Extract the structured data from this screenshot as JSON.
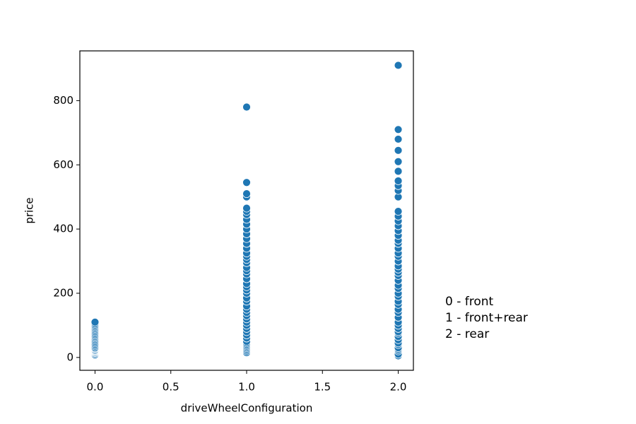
{
  "chart_data": {
    "type": "scatter",
    "xlabel": "driveWheelConfiguration",
    "ylabel": "price",
    "annotation_lines": [
      "0 - front",
      "1 - front+rear",
      "2 - rear"
    ],
    "xlim": [
      -0.1,
      2.1
    ],
    "xticks": [
      {
        "value": 0,
        "label": "0.0"
      },
      0.5,
      {
        "value": 1,
        "label": "1.0"
      },
      1.5,
      {
        "value": 2,
        "label": "2.0"
      }
    ],
    "ylim": [
      -40,
      955
    ],
    "yticks": [
      0,
      200,
      400,
      600,
      800
    ],
    "x": [
      0,
      0,
      0,
      0,
      0,
      0,
      0,
      0,
      0,
      0,
      0,
      0,
      0,
      0,
      0,
      0,
      0,
      0,
      0,
      0,
      0,
      0,
      0,
      0,
      0,
      1,
      1,
      1,
      1,
      1,
      1,
      1,
      1,
      1,
      1,
      1,
      1,
      1,
      1,
      1,
      1,
      1,
      1,
      1,
      1,
      1,
      1,
      1,
      1,
      1,
      1,
      1,
      1,
      1,
      1,
      1,
      1,
      1,
      1,
      1,
      1,
      1,
      1,
      1,
      1,
      1,
      1,
      1,
      1,
      1,
      1,
      1,
      2,
      2,
      2,
      2,
      2,
      2,
      2,
      2,
      2,
      2,
      2,
      2,
      2,
      2,
      2,
      2,
      2,
      2,
      2,
      2,
      2,
      2,
      2,
      2,
      2,
      2,
      2,
      2,
      2,
      2,
      2,
      2,
      2,
      2,
      2,
      2,
      2,
      2,
      2,
      2,
      2,
      2,
      2,
      2,
      2,
      2,
      2,
      2,
      2,
      2
    ],
    "series": [
      {
        "color": "#1f77b4",
        "values": [
          8,
          12,
          15,
          18,
          20,
          22,
          25,
          28,
          30,
          35,
          40,
          45,
          50,
          55,
          60,
          65,
          70,
          75,
          80,
          85,
          90,
          95,
          100,
          105,
          110,
          15,
          20,
          25,
          30,
          35,
          40,
          45,
          50,
          60,
          70,
          80,
          90,
          100,
          110,
          120,
          130,
          140,
          150,
          160,
          175,
          185,
          200,
          210,
          220,
          230,
          245,
          260,
          270,
          280,
          295,
          305,
          315,
          325,
          340,
          355,
          370,
          385,
          400,
          415,
          430,
          445,
          455,
          465,
          500,
          510,
          545,
          780,
          5,
          10,
          20,
          25,
          30,
          40,
          45,
          55,
          65,
          75,
          80,
          90,
          100,
          110,
          125,
          140,
          150,
          165,
          175,
          190,
          200,
          215,
          225,
          240,
          255,
          265,
          275,
          285,
          300,
          315,
          325,
          340,
          355,
          365,
          380,
          395,
          410,
          425,
          440,
          455,
          500,
          520,
          535,
          550,
          580,
          610,
          645,
          680,
          710,
          910
        ]
      }
    ]
  }
}
